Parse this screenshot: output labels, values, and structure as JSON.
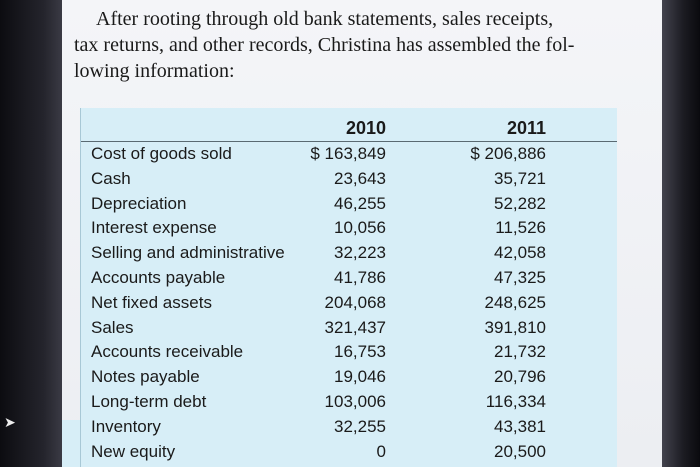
{
  "intro": {
    "line1": "After rooting through old bank statements, sales receipts,",
    "line2": "tax returns, and other records, Christina has assembled the fol-",
    "line3": "lowing information:"
  },
  "table": {
    "headers": [
      "2010",
      "2011"
    ],
    "rows": [
      {
        "label": "Cost of goods sold",
        "v2010": "$ 163,849",
        "v2011": "$ 206,886"
      },
      {
        "label": "Cash",
        "v2010": "23,643",
        "v2011": "35,721"
      },
      {
        "label": "Depreciation",
        "v2010": "46,255",
        "v2011": "52,282"
      },
      {
        "label": "Interest expense",
        "v2010": "10,056",
        "v2011": "11,526"
      },
      {
        "label": "Selling and administrative",
        "v2010": "32,223",
        "v2011": "42,058"
      },
      {
        "label": "Accounts payable",
        "v2010": "41,786",
        "v2011": "47,325"
      },
      {
        "label": "Net fixed assets",
        "v2010": "204,068",
        "v2011": "248,625"
      },
      {
        "label": "Sales",
        "v2010": "321,437",
        "v2011": "391,810"
      },
      {
        "label": "Accounts receivable",
        "v2010": "16,753",
        "v2011": "21,732"
      },
      {
        "label": "Notes payable",
        "v2010": "19,046",
        "v2011": "20,796"
      },
      {
        "label": "Long-term debt",
        "v2010": "103,006",
        "v2011": "116,334"
      },
      {
        "label": "Inventory",
        "v2010": "32,255",
        "v2011": "43,381"
      },
      {
        "label": "New equity",
        "v2010": "0",
        "v2011": "20,500"
      }
    ]
  },
  "icons": {
    "cursor": "mouse-pointer-icon"
  }
}
